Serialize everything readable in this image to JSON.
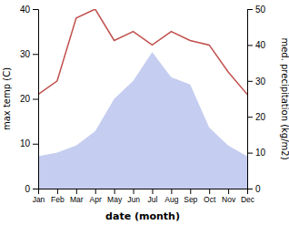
{
  "chart_data": {
    "type": "line",
    "categories": [
      "Jan",
      "Feb",
      "Mar",
      "Apr",
      "May",
      "Jun",
      "Jul",
      "Aug",
      "Sep",
      "Oct",
      "Nov",
      "Dec"
    ],
    "xlabel": "date (month)",
    "ylabel": "max temp (C)",
    "y2label": "med. precipitation (kg/m2)",
    "ylim": [
      0,
      40
    ],
    "yticks": [
      0,
      10,
      20,
      30,
      40
    ],
    "y2lim": [
      0,
      50
    ],
    "y2ticks": [
      0,
      10,
      20,
      30,
      40,
      50
    ],
    "series": [
      {
        "type": "line",
        "color": "#c0504d",
        "values": [
          21,
          24,
          38,
          40,
          33,
          35,
          32,
          35,
          33,
          32,
          26,
          21
        ]
      },
      {
        "type": "area",
        "axis": "y2",
        "color": "#c5cef0",
        "values": [
          9,
          10,
          12,
          16,
          25,
          30,
          38,
          31,
          29,
          17,
          12,
          9
        ]
      }
    ]
  }
}
